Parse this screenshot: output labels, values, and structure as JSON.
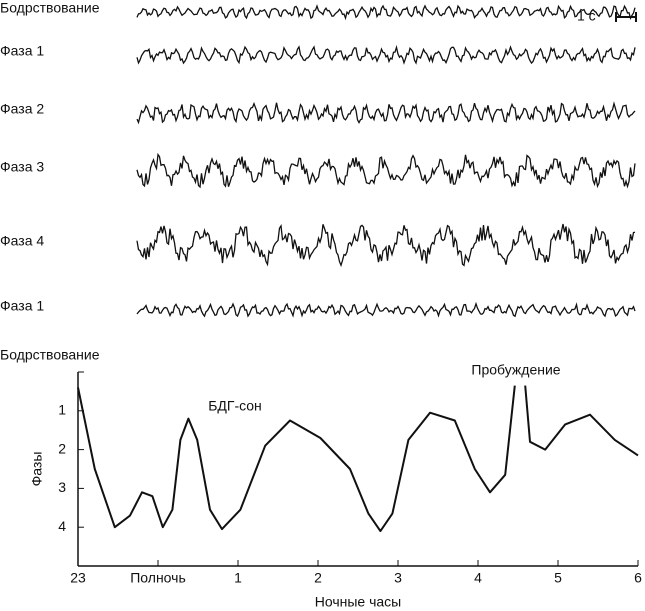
{
  "traces": [
    {
      "label": "Бодрствование"
    },
    {
      "label": "Фаза 1"
    },
    {
      "label": "Фаза 2"
    },
    {
      "label": "Фаза 3"
    },
    {
      "label": "Фаза 4"
    },
    {
      "label": "Фаза 1"
    }
  ],
  "scale_label": "1 с",
  "chart_data": {
    "type": "line",
    "x_label": "Ночные часы",
    "y_label": "Фазы",
    "annotations": [
      "БДГ-сон",
      "Пробуждение"
    ],
    "x": [
      0,
      0.21,
      0.46,
      0.65,
      0.8,
      0.93,
      1.06,
      1.18,
      1.28,
      1.38,
      1.49,
      1.65,
      1.8,
      2.03,
      2.34,
      2.65,
      3.03,
      3.4,
      3.63,
      3.78,
      3.93,
      4.13,
      4.4,
      4.71,
      4.96,
      5.15,
      5.34,
      5.46,
      5.52,
      5.59,
      5.65,
      5.84,
      6.09,
      6.4,
      6.71,
      7
    ],
    "series": [
      {
        "name": "Фазы",
        "color": "#111111",
        "values": [
          0.4,
          2.5,
          4,
          3.7,
          3.1,
          3.2,
          4,
          3.55,
          1.75,
          1.2,
          1.75,
          3.55,
          4.05,
          3.55,
          1.9,
          1.25,
          1.7,
          2.5,
          3.65,
          4.1,
          3.65,
          1.75,
          1.05,
          1.25,
          2.5,
          3.1,
          2.65,
          0.35,
          null,
          0.35,
          1.8,
          2,
          1.35,
          1.1,
          1.75,
          2.15
        ]
      }
    ],
    "xlim": [
      0,
      7
    ],
    "ylim": [
      0,
      5
    ],
    "xticks": [
      {
        "value": 0,
        "label": "23"
      },
      {
        "value": 1,
        "label": "Полночь"
      },
      {
        "value": 2,
        "label": "1"
      },
      {
        "value": 3,
        "label": "2"
      },
      {
        "value": 4,
        "label": "3"
      },
      {
        "value": 5,
        "label": "4"
      },
      {
        "value": 6,
        "label": "5"
      },
      {
        "value": 7,
        "label": "6"
      }
    ],
    "yticks": [
      {
        "value": 0,
        "label": "Бодрствование"
      },
      1,
      2,
      3,
      4
    ]
  }
}
